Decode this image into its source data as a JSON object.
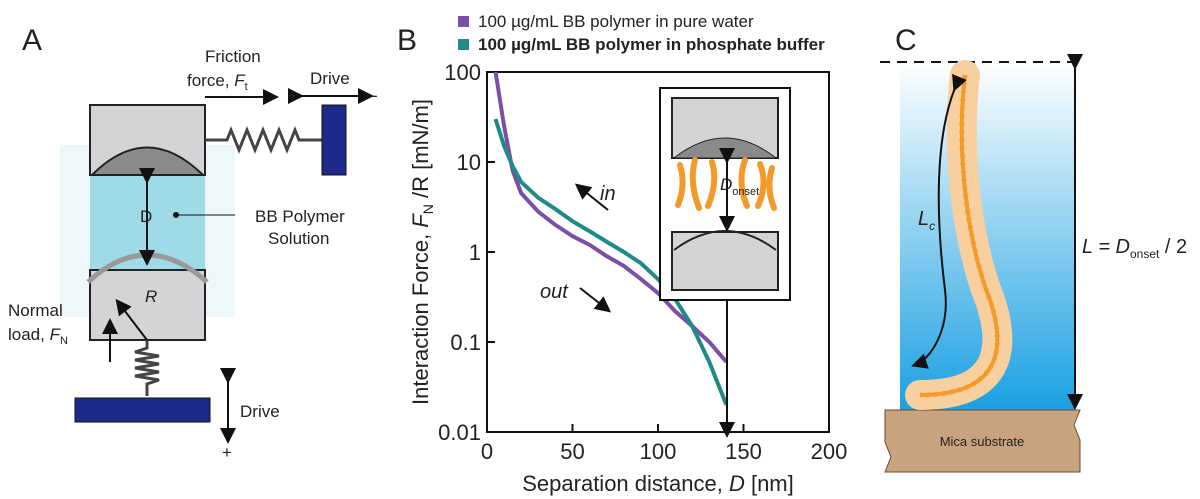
{
  "panel_a": {
    "label": "A",
    "friction": "Friction",
    "force": "force, ",
    "ft": "F",
    "ft_sub": "t",
    "drive_top": "Drive",
    "plus_top": "+",
    "minus_top": "-",
    "gap": "D",
    "solution_1": "BB Polymer",
    "solution_2": "Solution",
    "radius": "R",
    "normal": "Normal",
    "load": "load, ",
    "fn": "F",
    "fn_sub": "N",
    "minus_bottom": "-",
    "drive_bottom": "Drive",
    "plus_bottom": "+"
  },
  "chart_data": {
    "type": "line",
    "label": "B",
    "xlabel": [
      "Separation distance, ",
      "D",
      " [nm]"
    ],
    "ylabel": [
      "Interaction Force, ",
      "F",
      "N",
      " /R [mN/m]"
    ],
    "x": [
      5,
      10,
      15,
      20,
      30,
      40,
      50,
      60,
      70,
      80,
      90,
      100,
      110,
      120,
      130,
      140
    ],
    "series": [
      {
        "name": "100 µg/mL BB polymer in pure water",
        "color": "#7b4fa6",
        "values": [
          100,
          25,
          8,
          4.5,
          2.8,
          2.0,
          1.5,
          1.2,
          0.9,
          0.7,
          0.5,
          0.35,
          0.22,
          0.15,
          0.1,
          0.06
        ]
      },
      {
        "name": "100 µg/mL BB polymer in phosphate buffer",
        "color": "#1f8a86",
        "values": [
          30,
          15,
          9,
          6,
          4,
          3,
          2.2,
          1.7,
          1.3,
          1.0,
          0.75,
          0.5,
          0.3,
          0.15,
          0.06,
          0.02
        ]
      }
    ],
    "xlim": [
      0,
      200
    ],
    "xticks": [
      0,
      50,
      100,
      150,
      200
    ],
    "ylim": [
      0.01,
      100
    ],
    "yticks": [
      0.01,
      0.1,
      1,
      10,
      100
    ],
    "log_y": true,
    "annotations": {
      "in": "in",
      "out": "out",
      "inset_d": "D",
      "inset_onset": "onset"
    }
  },
  "panel_c": {
    "label": "C",
    "contour": "L",
    "contour_sub": "c",
    "height": "L = D",
    "height_sub": "onset",
    "height_rest": " / 2",
    "substrate": "Mica substrate"
  }
}
